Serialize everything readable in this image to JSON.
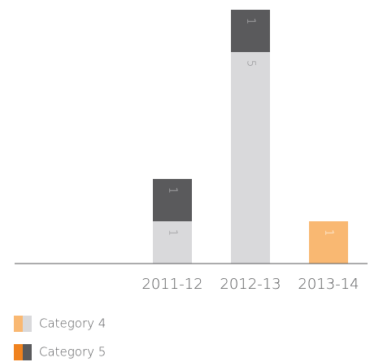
{
  "chart_data": {
    "type": "stacked_bar",
    "categories": [
      null,
      null,
      "2011-12",
      "2012-13",
      "2013-14"
    ],
    "series": [
      {
        "name": "Category 4",
        "color": "#d9d9db",
        "highlight_color": "#f9b872",
        "values": [
          null,
          null,
          1,
          5,
          1
        ]
      },
      {
        "name": "Category 5",
        "color": "#5a5a5c",
        "highlight_color": "#f0821e",
        "values": [
          null,
          null,
          1,
          1,
          null
        ]
      }
    ],
    "highlight_index": 4,
    "ylim": [
      0,
      6
    ],
    "grid": false,
    "legend": "bottom-left"
  }
}
